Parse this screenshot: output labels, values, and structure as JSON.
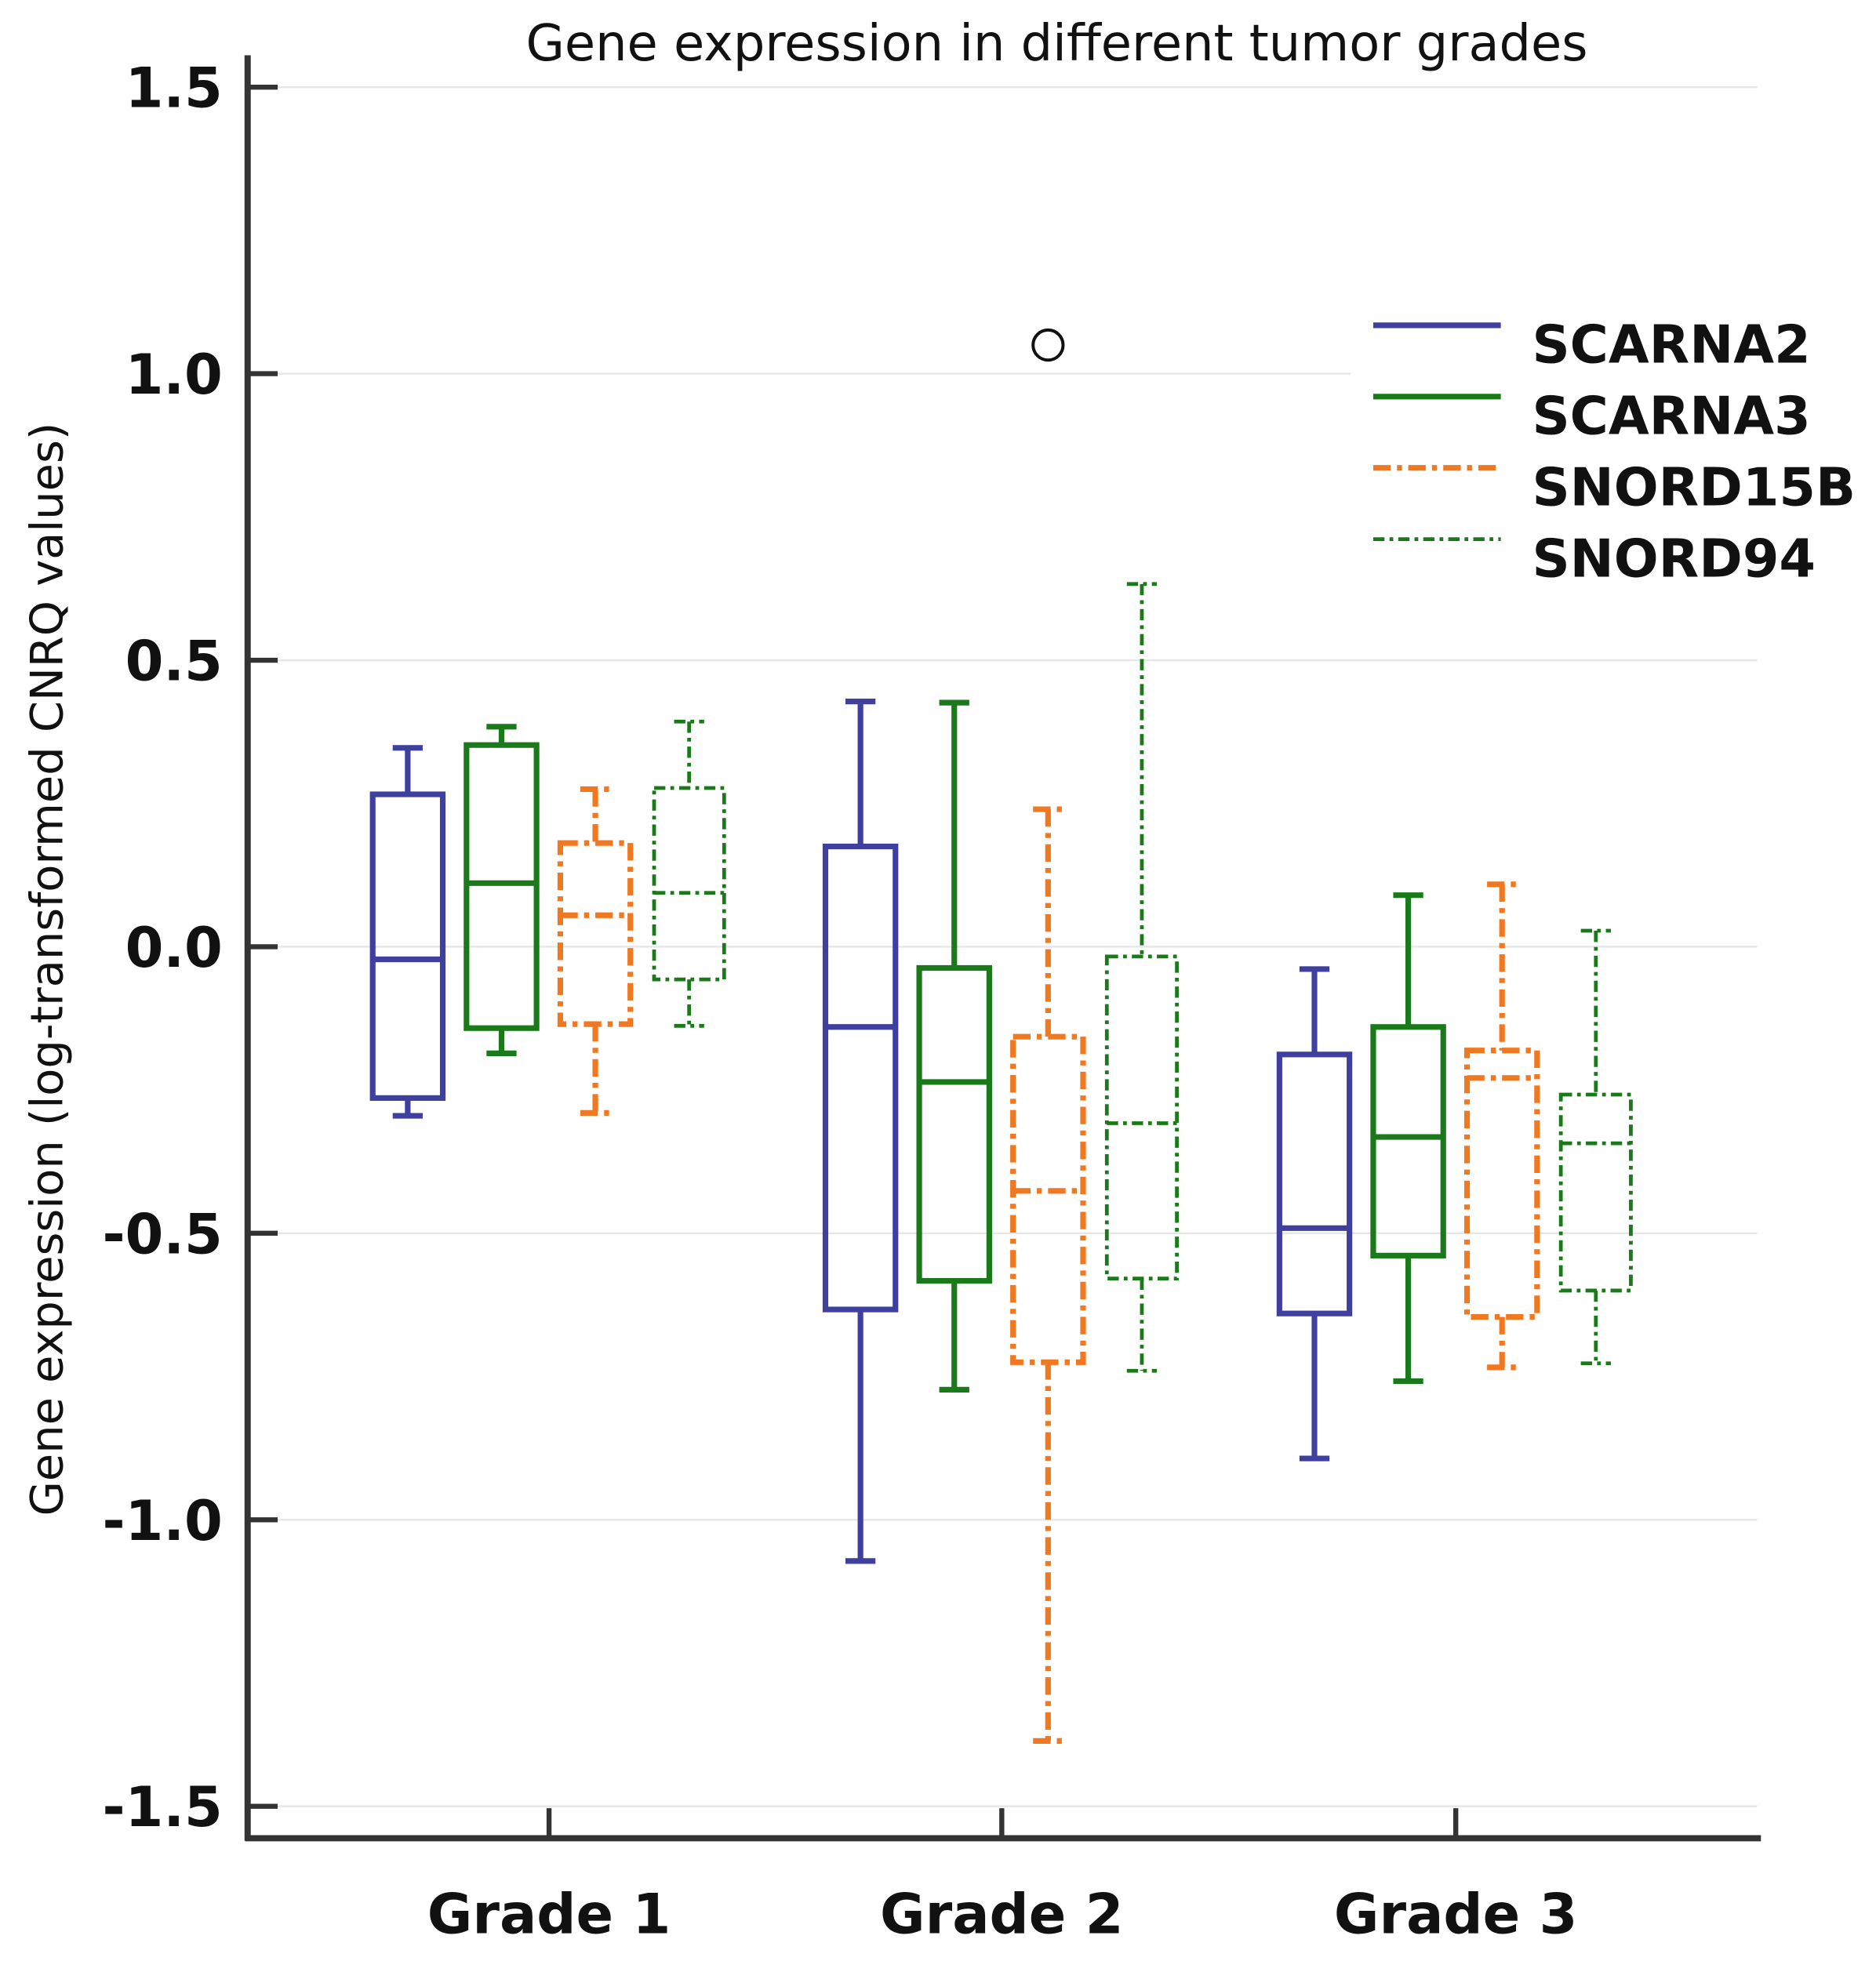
{
  "chart_data": {
    "type": "boxplot",
    "title": "Gene expression in different tumor grades",
    "xlabel": "",
    "ylabel": "Gene expression (log-transformed CNRQ values)",
    "ylim": [
      -1.5,
      1.5
    ],
    "yticks": [
      1.5,
      1.0,
      0.5,
      0.0,
      -0.5,
      -1.0,
      -1.5
    ],
    "ytick_labels": [
      "1.5",
      "1.0",
      "0.5",
      "0.0",
      "-0.5",
      "-1.0",
      "-1.5"
    ],
    "grid": true,
    "legend_position": "top-right",
    "categories": [
      "Grade 1",
      "Grade 2",
      "Grade 3"
    ],
    "series": [
      {
        "name": "SCARNA2",
        "color": "#3f3fa0",
        "dash": "solid",
        "boxes": [
          {
            "min": -0.295,
            "q1": -0.264,
            "median": -0.022,
            "q3": 0.266,
            "max": 0.347
          },
          {
            "min": -1.072,
            "q1": -0.633,
            "median": -0.14,
            "q3": 0.175,
            "max": 0.428
          },
          {
            "min": -0.893,
            "q1": -0.64,
            "median": -0.491,
            "q3": -0.188,
            "max": -0.039
          }
        ]
      },
      {
        "name": "SCARNA3",
        "color": "#1a7a1a",
        "dash": "solid",
        "boxes": [
          {
            "min": -0.186,
            "q1": -0.142,
            "median": 0.111,
            "q3": 0.352,
            "max": 0.384
          },
          {
            "min": -0.773,
            "q1": -0.583,
            "median": -0.236,
            "q3": -0.037,
            "max": 0.426
          },
          {
            "min": -0.758,
            "q1": -0.539,
            "median": -0.332,
            "q3": -0.14,
            "max": 0.09
          }
        ]
      },
      {
        "name": "SNORD15B",
        "color": "#f07820",
        "dash": "dashdot",
        "boxes": [
          {
            "min": -0.29,
            "q1": -0.135,
            "median": 0.055,
            "q3": 0.181,
            "max": 0.275
          },
          {
            "min": -1.386,
            "q1": -0.725,
            "median": -0.426,
            "q3": -0.157,
            "max": 0.24,
            "outliers": [
              1.05
            ]
          },
          {
            "min": -0.734,
            "q1": -0.646,
            "median": -0.229,
            "q3": -0.181,
            "max": 0.109
          }
        ]
      },
      {
        "name": "SNORD94",
        "color": "#1a7a1a",
        "dash": "dashdotthin",
        "boxes": [
          {
            "min": -0.138,
            "q1": -0.057,
            "median": 0.094,
            "q3": 0.277,
            "max": 0.393
          },
          {
            "min": -0.74,
            "q1": -0.579,
            "median": -0.308,
            "q3": -0.017,
            "max": 0.633
          },
          {
            "min": -0.727,
            "q1": -0.6,
            "median": -0.343,
            "q3": -0.258,
            "max": 0.028
          }
        ]
      }
    ]
  }
}
